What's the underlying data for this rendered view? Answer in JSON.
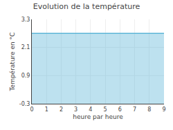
{
  "chart_data": {
    "type": "area",
    "title": "Evolution de la température",
    "xlabel": "heure par heure",
    "ylabel": "Température en °C",
    "x": [
      0,
      1,
      2,
      3,
      4,
      5,
      6,
      7,
      8,
      9
    ],
    "values": [
      2.7,
      2.7,
      2.7,
      2.7,
      2.7,
      2.7,
      2.7,
      2.7,
      2.7,
      2.7
    ],
    "color": "#5ab4d6",
    "xlim": [
      0,
      9
    ],
    "ylim": [
      -0.3,
      3.3
    ],
    "xticks": [
      0,
      1,
      2,
      3,
      4,
      5,
      6,
      7,
      8,
      9
    ],
    "yticks": [
      -0.3,
      0.9,
      2.1,
      3.3
    ],
    "grid": true
  }
}
